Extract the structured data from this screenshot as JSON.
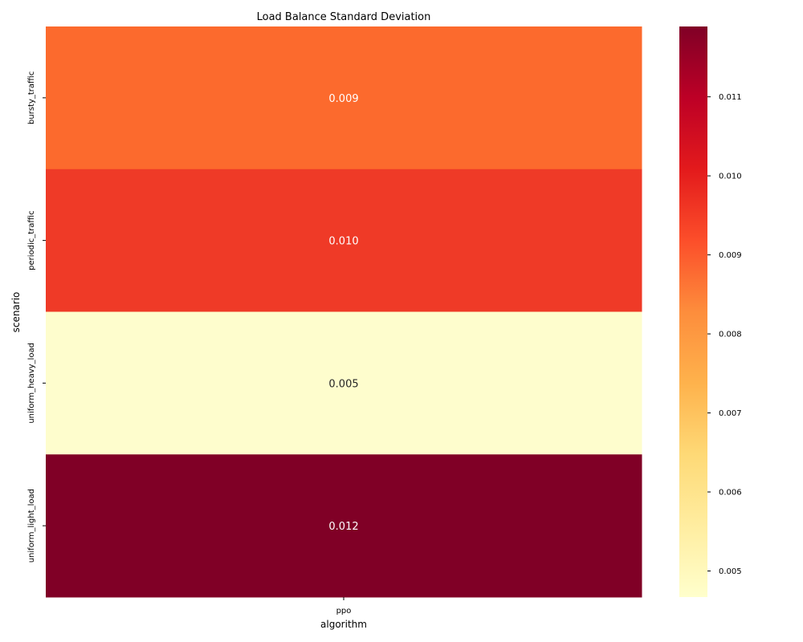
{
  "chart_data": {
    "type": "heatmap",
    "title": "Load Balance Standard Deviation",
    "xlabel": "algorithm",
    "ylabel": "scenario",
    "x_categories": [
      "ppo"
    ],
    "y_categories": [
      "bursty_traffic",
      "periodic_traffic",
      "uniform_heavy_load",
      "uniform_light_load"
    ],
    "values": [
      [
        0.009
      ],
      [
        0.01
      ],
      [
        0.005
      ],
      [
        0.012
      ]
    ],
    "cell_labels": [
      [
        "0.009"
      ],
      [
        "0.010"
      ],
      [
        "0.005"
      ],
      [
        "0.012"
      ]
    ],
    "colormap": "YlOrRd",
    "cell_colors": [
      "#fc6a2d",
      "#ef3a27",
      "#fefdcd",
      "#800026"
    ],
    "colorbar": {
      "range": [
        0.00467,
        0.01189
      ],
      "ticks": [
        0.005,
        0.006,
        0.007,
        0.008,
        0.009,
        0.01,
        0.011
      ],
      "tick_labels": [
        "0.005",
        "0.006",
        "0.007",
        "0.008",
        "0.009",
        "0.010",
        "0.011"
      ],
      "stops": [
        "#ffffcc",
        "#ffeda0",
        "#fed976",
        "#feb24c",
        "#fd8d3c",
        "#fc4e2a",
        "#e31a1c",
        "#bd0026",
        "#800026"
      ]
    }
  }
}
